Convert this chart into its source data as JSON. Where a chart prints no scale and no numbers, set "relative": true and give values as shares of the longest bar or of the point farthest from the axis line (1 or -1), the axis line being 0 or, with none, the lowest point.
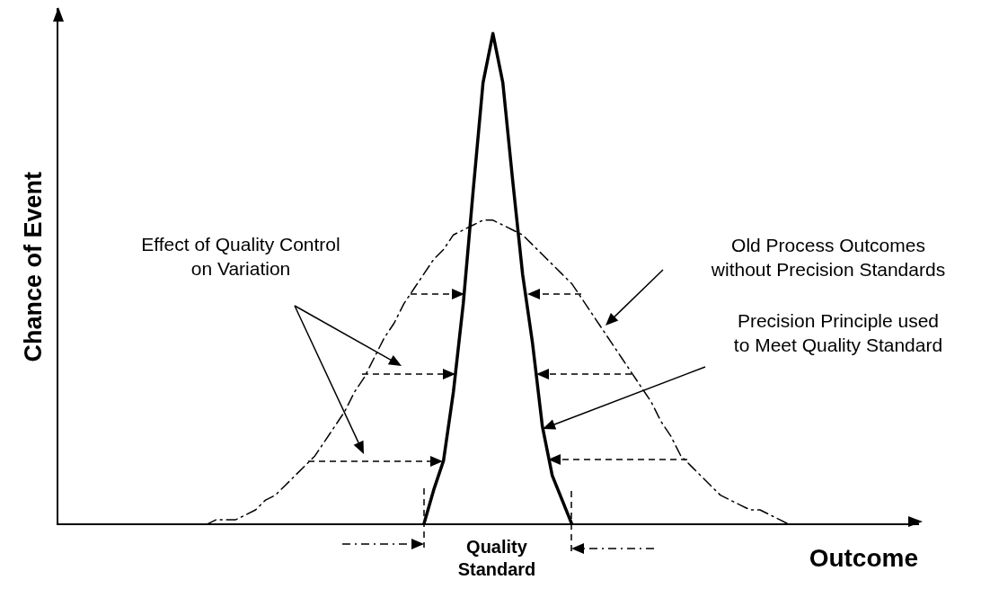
{
  "chart_data": {
    "type": "line",
    "relative": true,
    "xlabel": "Outcome",
    "ylabel": "Chance of Event",
    "grid": false,
    "legend": false,
    "marker": "none",
    "annotations": [
      "Effect of Quality Control on Variation",
      "Quality Standard",
      "Old Process Outcomes without Precision Standards",
      "Precision Principle used to Meet Quality Standard"
    ],
    "categories": [
      null,
      null,
      null,
      null,
      null,
      null,
      null,
      null,
      null,
      null,
      null,
      null,
      null,
      null,
      null,
      null,
      null,
      null,
      null,
      null,
      null,
      null,
      null,
      null,
      null,
      null,
      null,
      null,
      null,
      null,
      null,
      null,
      null,
      null,
      null,
      null,
      null,
      null,
      null,
      null,
      null,
      null,
      null,
      null,
      null,
      null,
      null,
      null,
      null,
      null,
      null,
      null,
      null,
      null,
      null,
      null,
      null,
      null,
      null,
      null,
      null,
      null,
      null,
      null,
      null,
      null,
      null,
      null,
      null,
      null,
      null,
      null,
      null,
      null,
      null,
      null,
      null,
      null,
      null,
      null,
      null,
      null,
      null,
      null,
      null,
      null,
      null,
      null
    ],
    "series": [
      {
        "color": "#000000",
        "line_style": "dashed",
        "values": [
          null,
          null,
          null,
          null,
          null,
          null,
          null,
          null,
          null,
          null,
          null,
          null,
          null,
          null,
          null,
          0,
          0.01,
          0.01,
          0.01,
          0.02,
          0.03,
          0.05,
          0.06,
          0.08,
          0.1,
          0.12,
          0.14,
          0.17,
          0.2,
          0.23,
          0.27,
          0.3,
          0.34,
          0.38,
          0.41,
          0.45,
          0.48,
          0.51,
          0.54,
          0.56,
          0.59,
          0.6,
          0.61,
          0.62,
          0.62,
          0.61,
          0.6,
          0.59,
          0.57,
          0.55,
          0.53,
          0.51,
          0.49,
          0.46,
          0.43,
          0.4,
          0.37,
          0.34,
          0.31,
          0.28,
          0.25,
          0.21,
          0.18,
          0.14,
          0.12,
          0.1,
          0.08,
          0.06,
          0.05,
          0.04,
          0.03,
          0.03,
          0.02,
          0.01,
          0,
          null,
          null,
          null,
          null,
          null,
          null,
          null,
          null,
          null,
          null,
          null,
          null,
          null
        ]
      },
      {
        "color": "#000000",
        "line_style": "solid",
        "values": [
          null,
          null,
          null,
          null,
          null,
          null,
          null,
          null,
          null,
          null,
          null,
          null,
          null,
          null,
          null,
          null,
          null,
          null,
          null,
          null,
          null,
          null,
          null,
          null,
          null,
          null,
          null,
          null,
          null,
          null,
          null,
          null,
          null,
          null,
          null,
          null,
          null,
          0,
          0.07,
          0.13,
          0.27,
          0.45,
          0.68,
          0.9,
          1,
          0.9,
          0.7,
          0.51,
          0.37,
          0.2,
          0.1,
          0.05,
          0,
          null,
          null,
          null,
          null,
          null,
          null,
          null,
          null,
          null,
          null,
          null,
          null,
          null,
          null,
          null,
          null,
          null,
          null,
          null,
          null,
          null,
          null,
          null,
          null,
          null,
          null,
          null,
          null,
          null,
          null,
          null,
          null,
          null,
          null,
          null
        ]
      }
    ]
  }
}
